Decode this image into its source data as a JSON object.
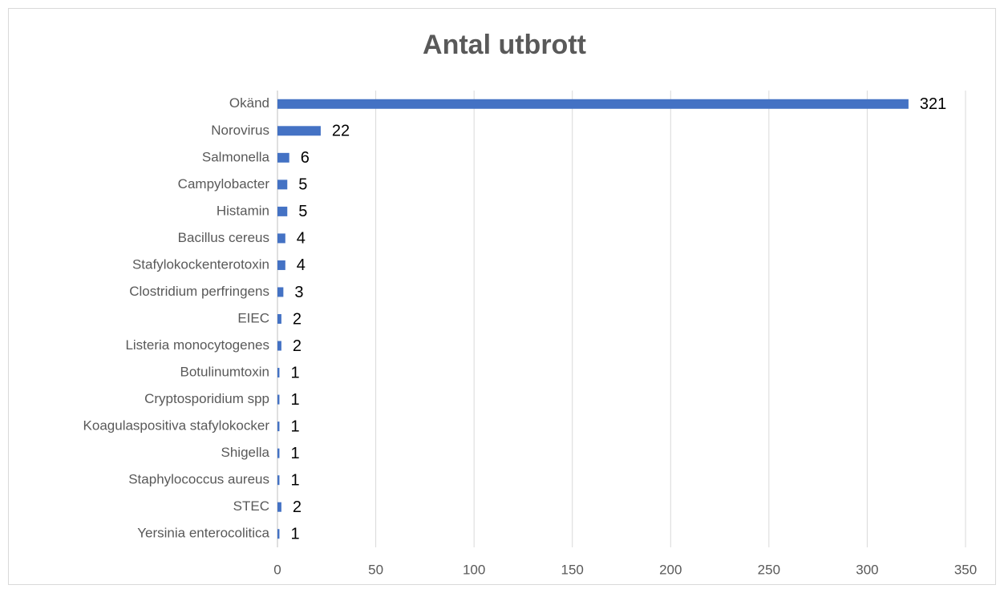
{
  "chart_data": {
    "type": "hbar",
    "title": "Antal utbrott",
    "categories": [
      "Okänd",
      "Norovirus",
      "Salmonella",
      "Campylobacter",
      "Histamin",
      "Bacillus cereus",
      "Stafylokockenterotoxin",
      "Clostridium perfringens",
      "EIEC",
      "Listeria monocytogenes",
      "Botulinumtoxin",
      "Cryptosporidium spp",
      "Koagulaspositiva stafylokocker",
      "Shigella",
      "Staphylococcus aureus",
      "STEC",
      "Yersinia enterocolitica"
    ],
    "values": [
      321,
      22,
      6,
      5,
      5,
      4,
      4,
      3,
      2,
      2,
      1,
      1,
      1,
      1,
      1,
      2,
      1
    ],
    "color": "#4472c4",
    "xlim": [
      0,
      350
    ],
    "xticks": [
      0,
      50,
      100,
      150,
      200,
      250,
      300,
      350
    ],
    "grid": true
  }
}
